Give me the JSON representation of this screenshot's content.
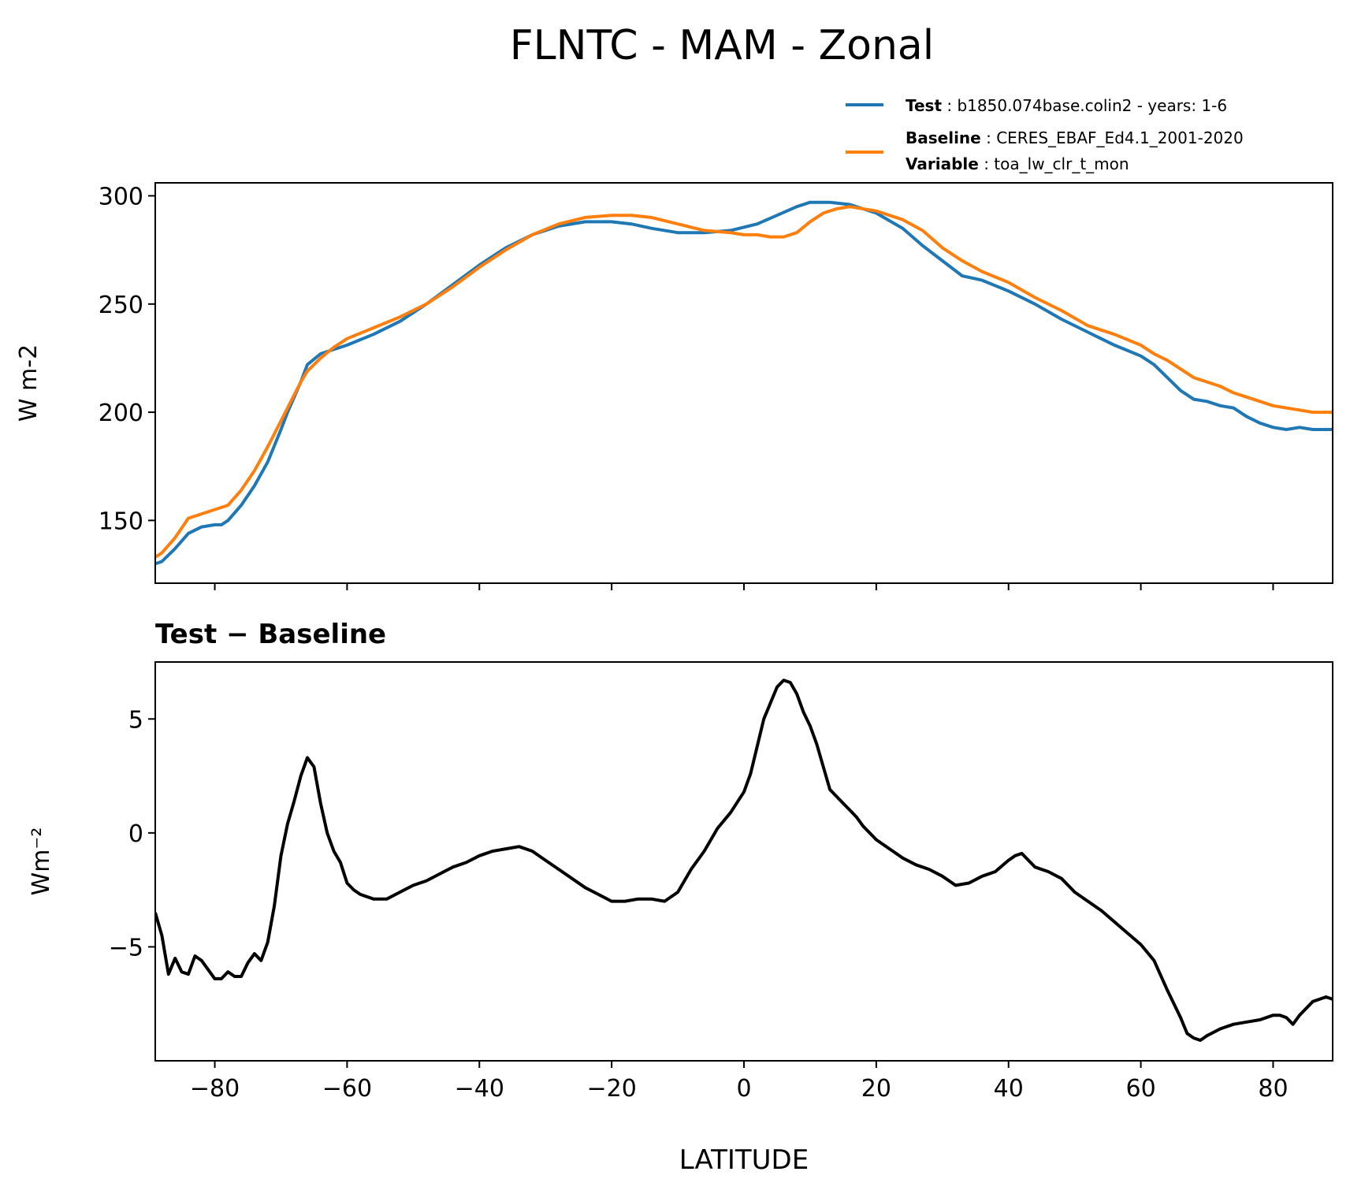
{
  "figure": {
    "title": "FLNTC - MAM - Zonal"
  },
  "legend": {
    "test_key": "Test",
    "test_value": "b1850.074base.colin2 - years: 1-6",
    "baseline_key": "Baseline",
    "baseline_value": "CERES_EBAF_Ed4.1_2001-2020",
    "variable_key": "Variable",
    "variable_value": "toa_lw_clr_t_mon"
  },
  "colors": {
    "test": "#1f77b4",
    "baseline": "#ff7f0e",
    "diff": "#000000"
  },
  "chart_data": [
    {
      "type": "line",
      "title": "",
      "xlabel": "",
      "ylabel": "W m-2",
      "xlim": [
        -89,
        89
      ],
      "ylim": [
        121,
        306
      ],
      "yticks": [
        150,
        200,
        250,
        300
      ],
      "ytick_labels": [
        "150",
        "200",
        "250",
        "300"
      ],
      "xticks": [
        -80,
        -60,
        -40,
        -20,
        0,
        20,
        40,
        60,
        80
      ],
      "series": [
        {
          "name": "Test",
          "x": [
            -89,
            -88,
            -86,
            -84,
            -82,
            -80,
            -79,
            -78,
            -76,
            -74,
            -72,
            -70,
            -69,
            -67,
            -66,
            -64,
            -62,
            -60,
            -56,
            -52,
            -48,
            -44,
            -40,
            -36,
            -32,
            -28,
            -24,
            -20,
            -17,
            -14,
            -10,
            -6,
            -2,
            2,
            5,
            8,
            10,
            13,
            16,
            20,
            24,
            27,
            30,
            33,
            36,
            40,
            44,
            48,
            52,
            56,
            60,
            62,
            64,
            66,
            68,
            70,
            72,
            74,
            76,
            78,
            80,
            82,
            84,
            86,
            89
          ],
          "y": [
            130,
            131,
            137,
            144,
            147,
            148,
            148,
            150,
            157,
            166,
            177,
            192,
            200,
            214,
            222,
            227,
            229,
            231,
            236,
            242,
            250,
            259,
            268,
            276,
            282,
            286,
            288,
            288,
            287,
            285,
            283,
            283,
            284,
            287,
            291,
            295,
            297,
            297,
            296,
            292,
            285,
            277,
            270,
            263,
            261,
            256,
            250,
            243,
            237,
            231,
            226,
            222,
            216,
            210,
            206,
            205,
            203,
            202,
            198,
            195,
            193,
            192,
            193,
            192,
            192
          ]
        },
        {
          "name": "Baseline",
          "x": [
            -89,
            -88,
            -86,
            -84,
            -82,
            -80,
            -78,
            -76,
            -74,
            -72,
            -70,
            -69,
            -67,
            -66,
            -64,
            -62,
            -60,
            -56,
            -52,
            -48,
            -44,
            -40,
            -36,
            -32,
            -28,
            -24,
            -20,
            -17,
            -14,
            -10,
            -6,
            -2,
            0,
            2,
            4,
            6,
            8,
            10,
            12,
            14,
            16,
            18,
            20,
            24,
            27,
            30,
            33,
            36,
            40,
            44,
            48,
            52,
            56,
            60,
            62,
            64,
            66,
            68,
            70,
            72,
            74,
            76,
            78,
            80,
            82,
            84,
            86,
            89
          ],
          "y": [
            133,
            135,
            142,
            151,
            153,
            155,
            157,
            164,
            173,
            184,
            196,
            202,
            214,
            219,
            225,
            230,
            234,
            239,
            244,
            250,
            258,
            267,
            275,
            282,
            287,
            290,
            291,
            291,
            290,
            287,
            284,
            283,
            282,
            282,
            281,
            281,
            283,
            288,
            292,
            294,
            295,
            294,
            293,
            289,
            284,
            276,
            270,
            265,
            260,
            253,
            247,
            240,
            236,
            231,
            227,
            224,
            220,
            216,
            214,
            212,
            209,
            207,
            205,
            203,
            202,
            201,
            200,
            200
          ]
        }
      ]
    },
    {
      "type": "line",
      "title": "Test − Baseline",
      "xlabel": "LATITUDE",
      "ylabel": "Wm⁻²",
      "xlim": [
        -89,
        89
      ],
      "ylim": [
        -10.0,
        7.5
      ],
      "yticks": [
        -5,
        0,
        5
      ],
      "ytick_labels": [
        "−5",
        "0",
        "5"
      ],
      "xticks": [
        -80,
        -60,
        -40,
        -20,
        0,
        20,
        40,
        60,
        80
      ],
      "xtick_labels": [
        "−80",
        "−60",
        "−40",
        "−20",
        "0",
        "20",
        "40",
        "60",
        "80"
      ],
      "series": [
        {
          "name": "Test − Baseline",
          "x": [
            -89,
            -88,
            -87,
            -86,
            -85,
            -84,
            -83,
            -82,
            -81,
            -80,
            -79,
            -78,
            -77,
            -76,
            -75,
            -74,
            -73,
            -72,
            -71,
            -70,
            -69,
            -68,
            -67,
            -66,
            -65,
            -64,
            -63,
            -62,
            -61,
            -60,
            -59,
            -58,
            -56,
            -54,
            -52,
            -50,
            -48,
            -46,
            -44,
            -42,
            -40,
            -38,
            -36,
            -34,
            -32,
            -30,
            -28,
            -26,
            -24,
            -22,
            -20,
            -18,
            -16,
            -14,
            -12,
            -10,
            -8,
            -6,
            -4,
            -2,
            0,
            1,
            2,
            3,
            4,
            5,
            6,
            7,
            8,
            9,
            10,
            11,
            12,
            13,
            14,
            15,
            16,
            17,
            18,
            20,
            22,
            24,
            26,
            28,
            30,
            32,
            34,
            36,
            38,
            40,
            41,
            42,
            44,
            46,
            48,
            50,
            52,
            54,
            56,
            58,
            60,
            62,
            64,
            66,
            67,
            68,
            69,
            70,
            72,
            74,
            76,
            78,
            80,
            81,
            82,
            83,
            84,
            86,
            88,
            89
          ],
          "y": [
            -3.5,
            -4.5,
            -6.2,
            -5.5,
            -6.1,
            -6.2,
            -5.4,
            -5.6,
            -6.0,
            -6.4,
            -6.4,
            -6.1,
            -6.3,
            -6.3,
            -5.7,
            -5.3,
            -5.6,
            -4.8,
            -3.2,
            -1.0,
            0.4,
            1.4,
            2.5,
            3.3,
            2.9,
            1.3,
            0.0,
            -0.8,
            -1.3,
            -2.2,
            -2.5,
            -2.7,
            -2.9,
            -2.9,
            -2.6,
            -2.3,
            -2.1,
            -1.8,
            -1.5,
            -1.3,
            -1.0,
            -0.8,
            -0.7,
            -0.6,
            -0.8,
            -1.2,
            -1.6,
            -2.0,
            -2.4,
            -2.7,
            -3.0,
            -3.0,
            -2.9,
            -2.9,
            -3.0,
            -2.6,
            -1.6,
            -0.8,
            0.2,
            0.9,
            1.8,
            2.6,
            3.8,
            5.0,
            5.7,
            6.4,
            6.7,
            6.6,
            6.1,
            5.3,
            4.7,
            3.9,
            2.9,
            1.9,
            1.6,
            1.3,
            1.0,
            0.7,
            0.3,
            -0.3,
            -0.7,
            -1.1,
            -1.4,
            -1.6,
            -1.9,
            -2.3,
            -2.2,
            -1.9,
            -1.7,
            -1.2,
            -1.0,
            -0.9,
            -1.5,
            -1.7,
            -2.0,
            -2.6,
            -3.0,
            -3.4,
            -3.9,
            -4.4,
            -4.9,
            -5.6,
            -6.9,
            -8.1,
            -8.8,
            -9.0,
            -9.1,
            -8.9,
            -8.6,
            -8.4,
            -8.3,
            -8.2,
            -8.0,
            -8.0,
            -8.1,
            -8.4,
            -8.0,
            -7.4,
            -7.2,
            -7.3
          ]
        }
      ]
    }
  ]
}
